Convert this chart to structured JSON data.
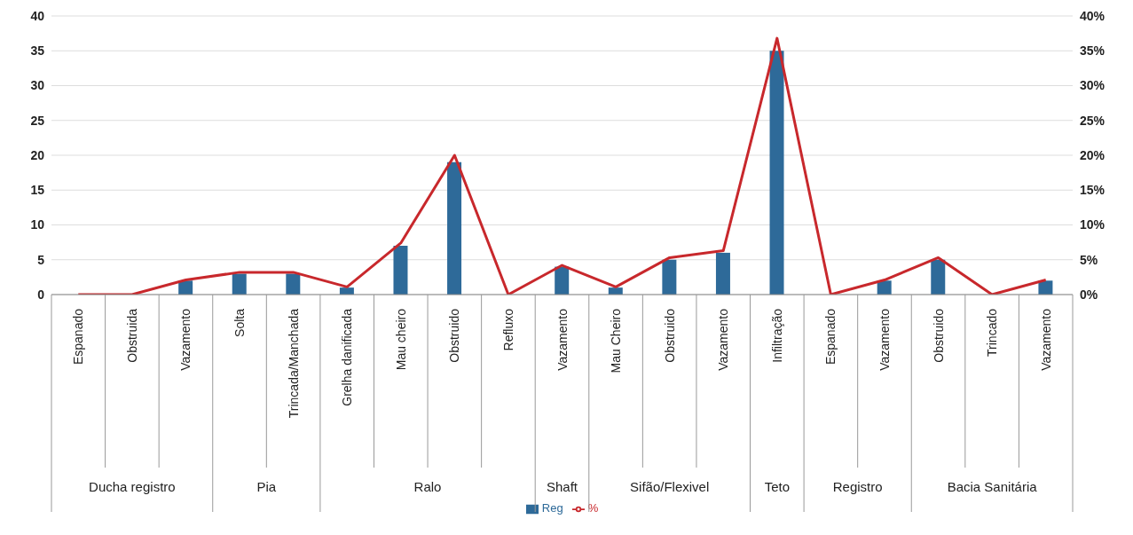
{
  "chart_data": {
    "type": "bar",
    "categories": [
      "Espanado",
      "Obstruida",
      "Vazamento",
      "Solta",
      "Trincada/Manchada",
      "Grelha danificada",
      "Mau cheiro",
      "Obstruido",
      "Refluxo",
      "Vazamento",
      "Mau Cheiro",
      "Obstruido",
      "Vazamento",
      "Infiltração",
      "Espanado",
      "Vazamento",
      "Obstruido",
      "Trincado",
      "Vazamento"
    ],
    "series": [
      {
        "name": "Reg",
        "color": "#2e6a99",
        "values": [
          0,
          0,
          2,
          3,
          3,
          1,
          7,
          19,
          0,
          4,
          1,
          5,
          6,
          35,
          0,
          2,
          5,
          0,
          2
        ]
      },
      {
        "name": "%",
        "type": "line",
        "axis": "y2",
        "color": "#c8282c",
        "values": [
          0,
          0,
          2.1,
          3.2,
          3.2,
          1.1,
          7.4,
          20.0,
          0,
          4.2,
          1.1,
          5.3,
          6.3,
          36.8,
          0,
          2.1,
          5.3,
          0,
          2.1
        ]
      }
    ],
    "ylim": [
      0,
      40
    ],
    "yticks": [
      0,
      5,
      10,
      15,
      20,
      25,
      30,
      35,
      40
    ],
    "y2lim": [
      0,
      40
    ],
    "y2ticks": [
      {
        "value": 0,
        "label": "0%"
      },
      {
        "value": 5,
        "label": "5%"
      },
      {
        "value": 10,
        "label": "10%"
      },
      {
        "value": 15,
        "label": "15%"
      },
      {
        "value": 20,
        "label": "20%"
      },
      {
        "value": 25,
        "label": "25%"
      },
      {
        "value": 30,
        "label": "30%"
      },
      {
        "value": 35,
        "label": "35%"
      },
      {
        "value": 40,
        "label": "40%"
      }
    ],
    "annotations": [
      "Ducha registro",
      "Pia",
      "Ralo",
      "Shaft",
      "Sifão/Flexivel",
      "Teto",
      "Registro",
      "Bacia Sanitária"
    ],
    "grid": "y",
    "legend": "bottom",
    "marker": "none",
    "line_style": "solid"
  }
}
